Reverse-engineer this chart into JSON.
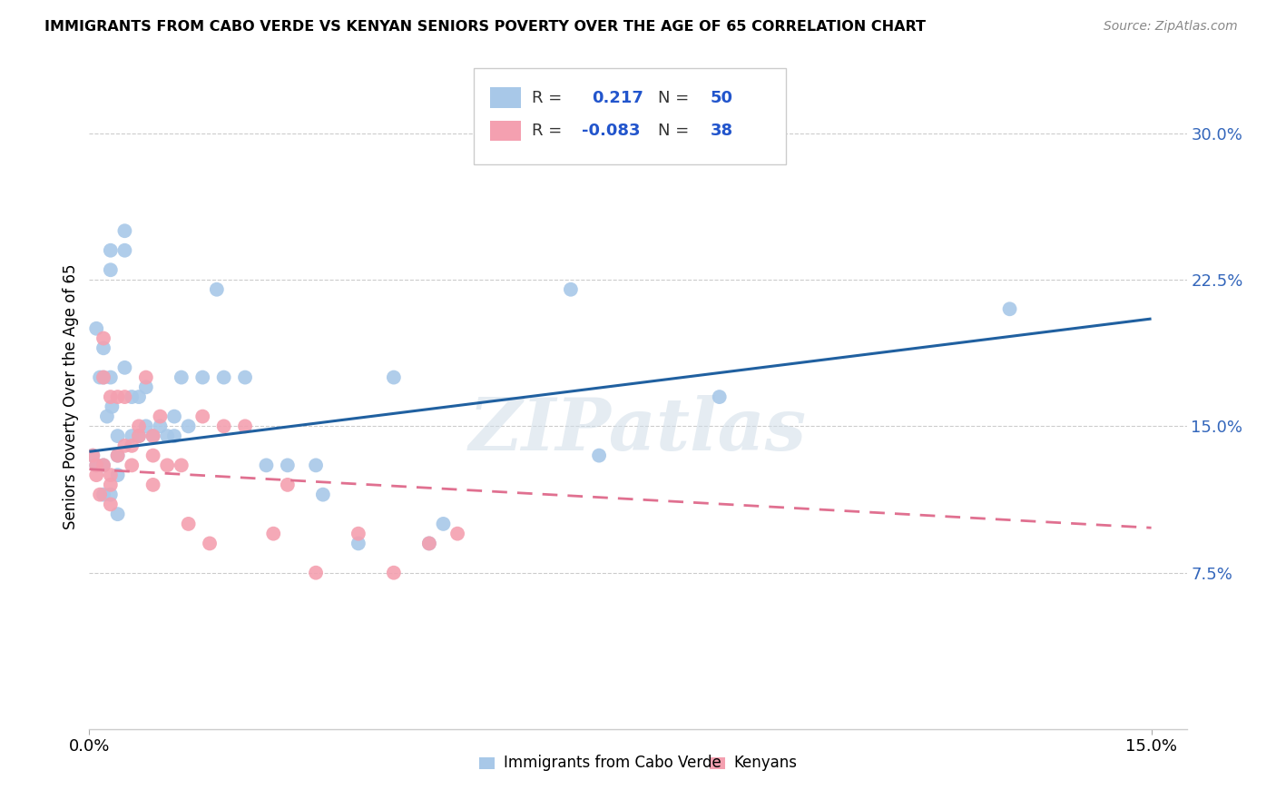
{
  "title": "IMMIGRANTS FROM CABO VERDE VS KENYAN SENIORS POVERTY OVER THE AGE OF 65 CORRELATION CHART",
  "source": "Source: ZipAtlas.com",
  "ylabel": "Seniors Poverty Over the Age of 65",
  "ytick_labels": [
    "7.5%",
    "15.0%",
    "22.5%",
    "30.0%"
  ],
  "ytick_vals": [
    0.075,
    0.15,
    0.225,
    0.3
  ],
  "xtick_labels": [
    "0.0%",
    "15.0%"
  ],
  "xtick_vals": [
    0.0,
    0.15
  ],
  "xlim": [
    0.0,
    0.155
  ],
  "ylim": [
    -0.005,
    0.335
  ],
  "cabo_verde_color": "#a8c8e8",
  "kenyan_color": "#f4a0b0",
  "cabo_verde_line_color": "#2060a0",
  "kenyan_line_color": "#e07090",
  "cabo_verde_x": [
    0.0005,
    0.001,
    0.0015,
    0.001,
    0.002,
    0.002,
    0.0025,
    0.002,
    0.002,
    0.003,
    0.003,
    0.003,
    0.0032,
    0.003,
    0.004,
    0.004,
    0.004,
    0.004,
    0.005,
    0.005,
    0.005,
    0.006,
    0.006,
    0.007,
    0.007,
    0.008,
    0.008,
    0.009,
    0.01,
    0.011,
    0.012,
    0.012,
    0.013,
    0.014,
    0.016,
    0.018,
    0.019,
    0.022,
    0.025,
    0.028,
    0.032,
    0.033,
    0.038,
    0.043,
    0.048,
    0.05,
    0.068,
    0.072,
    0.089,
    0.13
  ],
  "cabo_verde_y": [
    0.135,
    0.2,
    0.175,
    0.13,
    0.19,
    0.175,
    0.155,
    0.13,
    0.115,
    0.24,
    0.23,
    0.175,
    0.16,
    0.115,
    0.145,
    0.135,
    0.125,
    0.105,
    0.25,
    0.24,
    0.18,
    0.165,
    0.145,
    0.165,
    0.145,
    0.17,
    0.15,
    0.145,
    0.15,
    0.145,
    0.155,
    0.145,
    0.175,
    0.15,
    0.175,
    0.22,
    0.175,
    0.175,
    0.13,
    0.13,
    0.13,
    0.115,
    0.09,
    0.175,
    0.09,
    0.1,
    0.22,
    0.135,
    0.165,
    0.21
  ],
  "kenyan_x": [
    0.0005,
    0.001,
    0.001,
    0.0015,
    0.002,
    0.002,
    0.002,
    0.003,
    0.003,
    0.003,
    0.003,
    0.004,
    0.004,
    0.005,
    0.005,
    0.006,
    0.006,
    0.007,
    0.007,
    0.008,
    0.009,
    0.009,
    0.009,
    0.01,
    0.011,
    0.013,
    0.014,
    0.016,
    0.017,
    0.019,
    0.022,
    0.026,
    0.028,
    0.032,
    0.038,
    0.043,
    0.048,
    0.052
  ],
  "kenyan_y": [
    0.135,
    0.13,
    0.125,
    0.115,
    0.195,
    0.175,
    0.13,
    0.165,
    0.125,
    0.12,
    0.11,
    0.165,
    0.135,
    0.165,
    0.14,
    0.14,
    0.13,
    0.145,
    0.15,
    0.175,
    0.145,
    0.135,
    0.12,
    0.155,
    0.13,
    0.13,
    0.1,
    0.155,
    0.09,
    0.15,
    0.15,
    0.095,
    0.12,
    0.075,
    0.095,
    0.075,
    0.09,
    0.095
  ],
  "cabo_line_x0": 0.0,
  "cabo_line_y0": 0.137,
  "cabo_line_x1": 0.15,
  "cabo_line_y1": 0.205,
  "kenyan_line_x0": 0.0,
  "kenyan_line_y0": 0.128,
  "kenyan_line_x1": 0.15,
  "kenyan_line_y1": 0.098,
  "watermark": "ZIPatlas",
  "background_color": "#ffffff",
  "grid_color": "#cccccc"
}
